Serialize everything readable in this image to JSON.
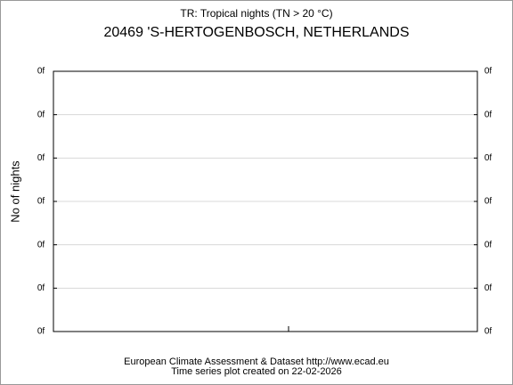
{
  "chart_data": {
    "type": "line",
    "title": "TR: Tropical nights (TN > 20 °C)",
    "subtitle": "20469 'S-HERTOGENBOSCH, NETHERLANDS",
    "y_label": "No of nights",
    "footer": [
      "European Climate Assessment & Dataset  http://www.ecad.eu",
      "Time series plot created on 22-02-2026"
    ],
    "series": [],
    "ylim": [
      0,
      6
    ],
    "yticks": [
      {
        "value": 0,
        "label": "0f"
      },
      {
        "value": 1,
        "label": "0f"
      },
      {
        "value": 2,
        "label": "0f"
      },
      {
        "value": 3,
        "label": "0f"
      },
      {
        "value": 4,
        "label": "0f"
      },
      {
        "value": 5,
        "label": "0f"
      },
      {
        "value": 6,
        "label": "0f"
      }
    ],
    "grid": true
  }
}
